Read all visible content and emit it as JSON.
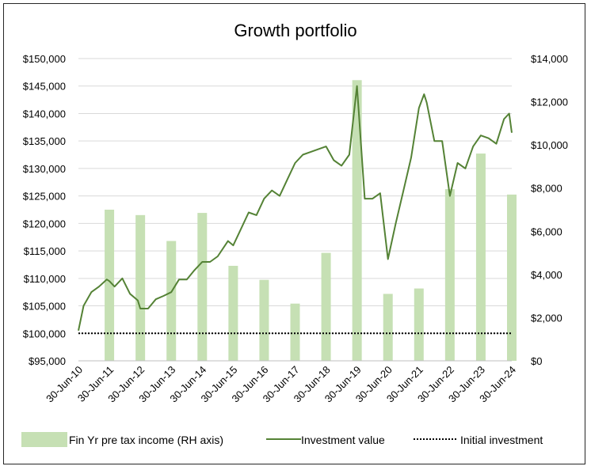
{
  "colors": {
    "bar": "#c6e0b4",
    "line": "#548235",
    "initial": "#000000",
    "grid": "#d9d9d9"
  },
  "chart_data": {
    "type": "line",
    "title": "Growth portfolio",
    "x_ticks": [
      "30-Jun-10",
      "30-Jun-11",
      "30-Jun-12",
      "30-Jun-13",
      "30-Jun-14",
      "30-Jun-15",
      "30-Jun-16",
      "30-Jun-17",
      "30-Jun-18",
      "30-Jun-19",
      "30-Jun-20",
      "30-Jun-21",
      "30-Jun-22",
      "30-Jun-23",
      "30-Jun-24"
    ],
    "y_left": {
      "min": 95000,
      "max": 150000,
      "step": 5000,
      "tick_labels": [
        "$95,000",
        "$100,000",
        "$105,000",
        "$110,000",
        "$115,000",
        "$120,000",
        "$125,000",
        "$130,000",
        "$135,000",
        "$140,000",
        "$145,000",
        "$150,000"
      ]
    },
    "y_right": {
      "min": 0,
      "max": 14000,
      "step": 2000,
      "tick_labels": [
        "$0",
        "$2,000",
        "$4,000",
        "$6,000",
        "$8,000",
        "$10,000",
        "$12,000",
        "$14,000"
      ]
    },
    "grid": true,
    "legend_position": "bottom",
    "series": [
      {
        "name": "Fin Yr pre tax income (RH axis)",
        "type": "bar",
        "axis": "right",
        "x": [
          "30-Jun-11",
          "30-Jun-12",
          "30-Jun-13",
          "30-Jun-14",
          "30-Jun-15",
          "30-Jun-16",
          "30-Jun-17",
          "30-Jun-18",
          "30-Jun-19",
          "30-Jun-20",
          "30-Jun-21",
          "30-Jun-22",
          "30-Jun-23",
          "30-Jun-24"
        ],
        "values": [
          7000,
          6750,
          5550,
          6850,
          4400,
          3750,
          2650,
          5000,
          13000,
          3100,
          3350,
          7950,
          9600,
          7700
        ]
      },
      {
        "name": "Investment value",
        "type": "line",
        "axis": "left",
        "x": [
          "30-Jun-10",
          "31-Aug-10",
          "30-Nov-10",
          "28-Feb-11",
          "31-May-11",
          "30-Jun-11",
          "31-Aug-11",
          "30-Nov-11",
          "28-Feb-12",
          "31-May-12",
          "30-Jun-12",
          "30-Sep-12",
          "31-Dec-12",
          "31-Mar-13",
          "30-Jun-13",
          "30-Sep-13",
          "31-Dec-13",
          "31-Mar-14",
          "30-Jun-14",
          "30-Sep-14",
          "31-Dec-14",
          "30-Apr-15",
          "30-Jun-15",
          "31-Aug-15",
          "31-Dec-15",
          "31-Mar-16",
          "30-Jun-16",
          "30-Sep-16",
          "31-Dec-16",
          "31-Mar-17",
          "30-Jun-17",
          "30-Sep-17",
          "31-Dec-17",
          "31-Mar-18",
          "30-Jun-18",
          "30-Sep-18",
          "31-Dec-18",
          "31-Mar-19",
          "30-Jun-19",
          "30-Sep-19",
          "31-Dec-19",
          "31-Mar-20",
          "30-Jun-20",
          "30-Sep-20",
          "31-Dec-20",
          "31-Mar-21",
          "30-Jun-21",
          "31-Aug-21",
          "30-Sep-21",
          "31-Dec-21",
          "31-Mar-22",
          "30-Jun-22",
          "30-Sep-22",
          "31-Dec-22",
          "31-Mar-23",
          "30-Jun-23",
          "30-Sep-23",
          "31-Dec-23",
          "31-Mar-24",
          "31-May-24",
          "30-Jun-24"
        ],
        "values": [
          100500,
          105000,
          107500,
          108500,
          109800,
          109500,
          108500,
          110000,
          107200,
          106000,
          104500,
          104500,
          106200,
          106800,
          107500,
          109800,
          109800,
          111500,
          113000,
          113000,
          114000,
          116800,
          116000,
          118000,
          122000,
          121500,
          124500,
          126000,
          125000,
          128000,
          131000,
          132500,
          133000,
          133500,
          134000,
          131500,
          130500,
          132500,
          145000,
          124500,
          124500,
          125500,
          113500,
          120000,
          126000,
          132000,
          141000,
          143500,
          142000,
          135000,
          135000,
          125000,
          131000,
          130000,
          134000,
          136000,
          135500,
          134500,
          139000,
          140000,
          136500
        ]
      },
      {
        "name": "Initial investment",
        "type": "line",
        "axis": "left",
        "style": "dotted",
        "x": [
          "30-Jun-10",
          "30-Jun-24"
        ],
        "values": [
          100000,
          100000
        ]
      }
    ]
  }
}
